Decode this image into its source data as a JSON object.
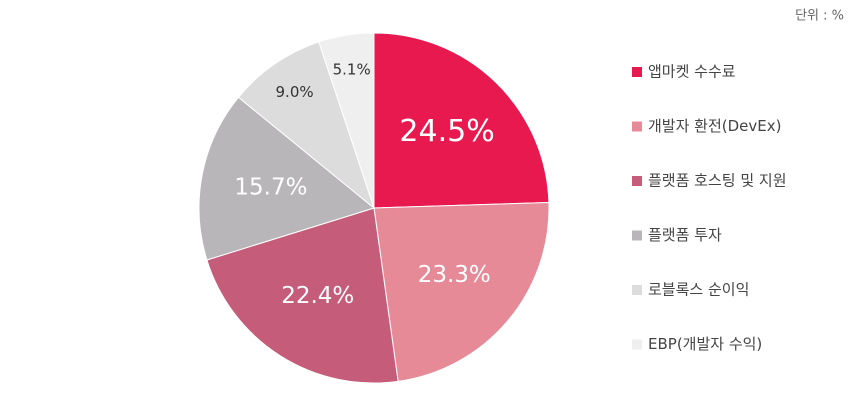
{
  "chart_data": {
    "type": "pie",
    "unit_note": "단위 : %",
    "categories": [
      "앱마켓 수수료",
      "개발자 환전(DevEx)",
      "플랫폼 호스팅 및 지원",
      "플랫폼 투자",
      "로블록스 순이익",
      "EBP(개발자 수익)"
    ],
    "values": [
      24.5,
      23.3,
      22.4,
      15.7,
      9.0,
      5.1
    ],
    "value_labels": [
      "24.5%",
      "23.3%",
      "22.4%",
      "15.7%",
      "9.0%",
      "5.1%"
    ],
    "colors": [
      "#e8194f",
      "#e68a98",
      "#c45c7a",
      "#b8b6b9",
      "#dcdcdc",
      "#efefef"
    ],
    "legend": "right"
  }
}
